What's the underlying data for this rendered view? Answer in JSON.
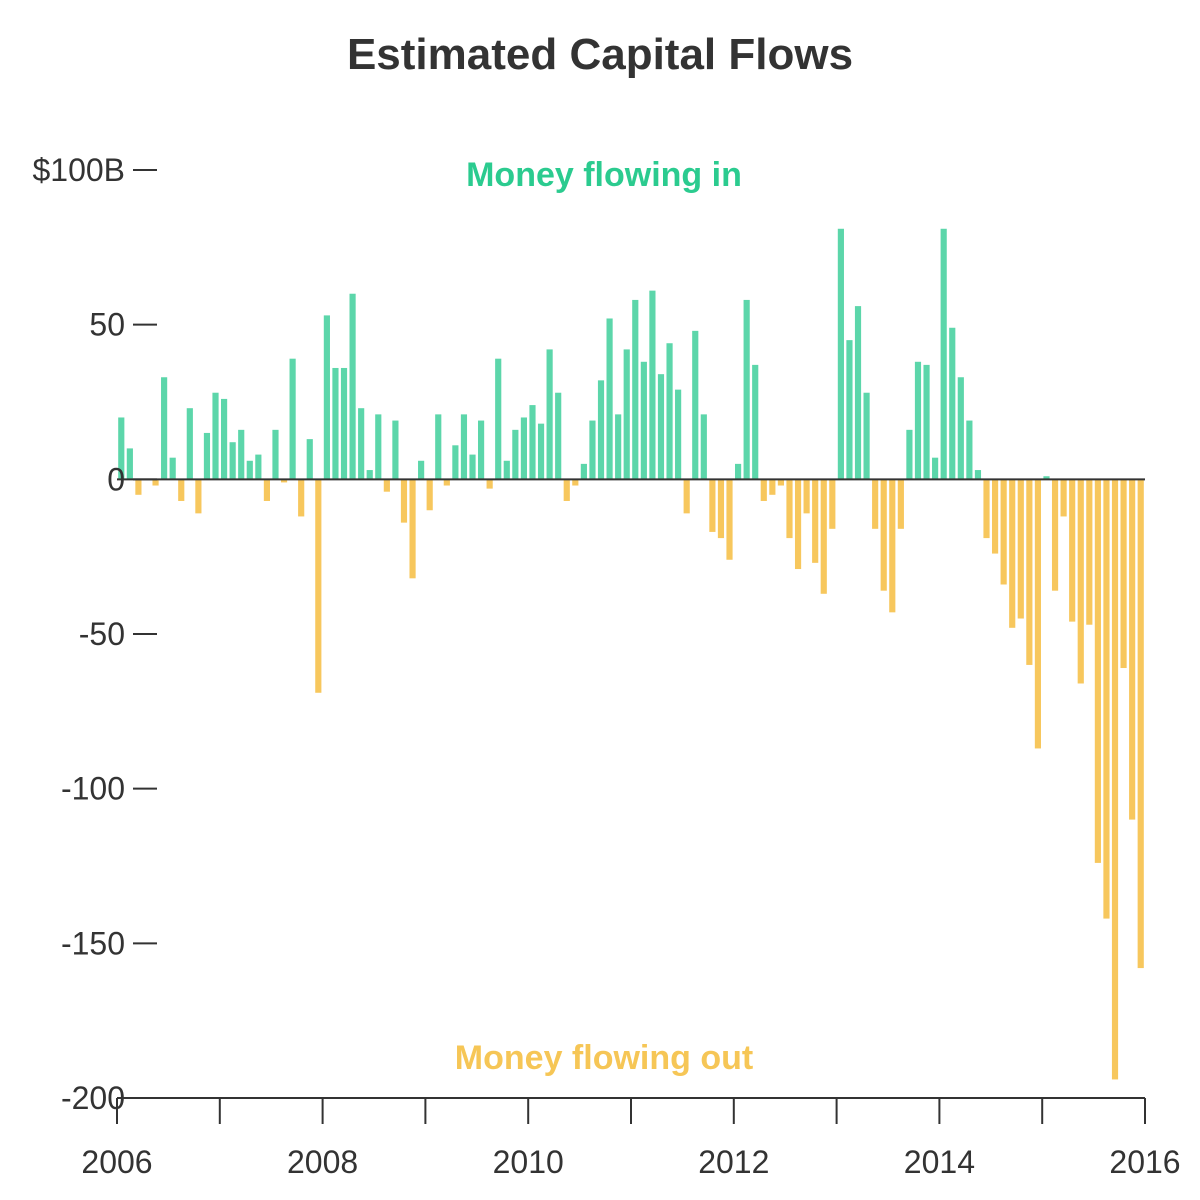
{
  "chart_data": {
    "type": "bar",
    "title": "Estimated Capital Flows",
    "x_start": 2006.0,
    "x_end": 2016.0,
    "period": "monthly",
    "ylim": [
      -200,
      100
    ],
    "y_ticks": [
      100,
      50,
      0,
      -50,
      -100,
      -150,
      -200
    ],
    "y_tick_labels": [
      "$100B",
      "50",
      "0",
      "-50",
      "-100",
      "-150",
      "-200"
    ],
    "x_ticks": [
      2006,
      2007,
      2008,
      2009,
      2010,
      2011,
      2012,
      2013,
      2014,
      2015,
      2016
    ],
    "x_tick_labels": [
      "2006",
      "",
      "2008",
      "",
      "2010",
      "",
      "2012",
      "",
      "2014",
      "",
      "2016"
    ],
    "annotations": {
      "inflow_label": "Money flowing in",
      "outflow_label": "Money flowing out"
    },
    "colors": {
      "positive": "#5cd6aa",
      "negative": "#f7c75d",
      "inflow_text": "#2bcb8f",
      "outflow_text": "#f6c656",
      "axis": "#333333"
    },
    "values": [
      20,
      10,
      -5,
      0,
      -2,
      33,
      7,
      -7,
      23,
      -11,
      15,
      28,
      26,
      12,
      16,
      6,
      8,
      -7,
      16,
      -1,
      39,
      -12,
      13,
      -69,
      53,
      36,
      36,
      60,
      23,
      3,
      21,
      -4,
      19,
      -14,
      -32,
      6,
      -10,
      21,
      -2,
      11,
      21,
      8,
      19,
      -3,
      39,
      6,
      16,
      20,
      24,
      18,
      42,
      28,
      -7,
      -2,
      5,
      19,
      32,
      52,
      21,
      42,
      58,
      38,
      61,
      34,
      44,
      29,
      -11,
      48,
      21,
      -17,
      -19,
      -26,
      5,
      58,
      37,
      -7,
      -5,
      -2,
      -19,
      -29,
      -11,
      -27,
      -37,
      -16,
      81,
      45,
      56,
      28,
      -16,
      -36,
      -43,
      -16,
      16,
      38,
      37,
      7,
      81,
      49,
      33,
      19,
      3,
      -19,
      -24,
      -34,
      -48,
      -45,
      -60,
      -87,
      1,
      -36,
      -12,
      -46,
      -66,
      -47,
      -124,
      -142,
      -194,
      -61,
      -110,
      -158
    ]
  }
}
